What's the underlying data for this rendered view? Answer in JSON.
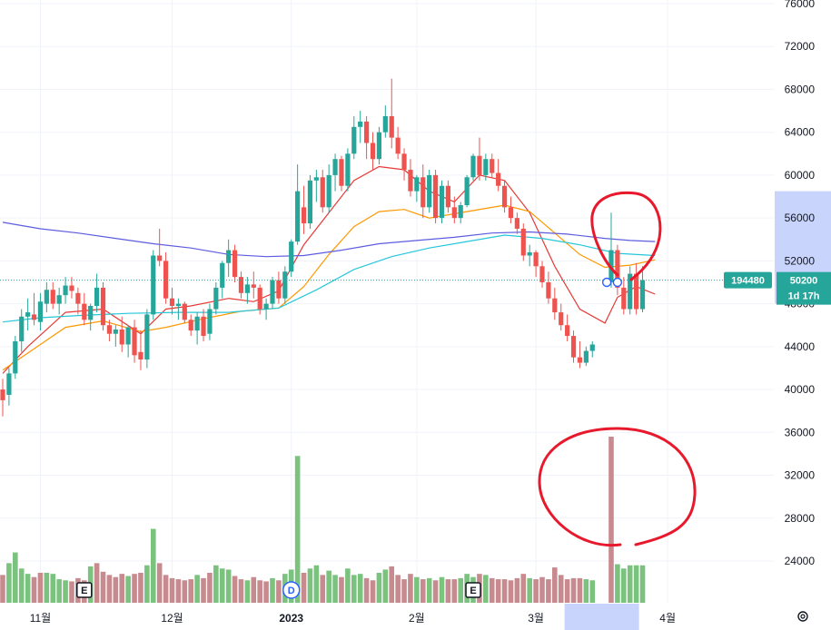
{
  "chart_data": {
    "type": "candlestick",
    "y_axis": {
      "ticks": [
        24000,
        28000,
        32000,
        36000,
        40000,
        44000,
        48000,
        52000,
        56000,
        60000,
        64000,
        68000,
        72000,
        76000
      ],
      "range": [
        21800,
        76500
      ]
    },
    "x_axis": {
      "labels": [
        {
          "text": "11월",
          "bar": 6,
          "bold": false
        },
        {
          "text": "12월",
          "bar": 27,
          "bold": false
        },
        {
          "text": "2023",
          "bar": 46,
          "bold": true
        },
        {
          "text": "2월",
          "bar": 66,
          "bold": false
        },
        {
          "text": "3월",
          "bar": 85,
          "bold": false
        },
        {
          "text": "4월",
          "bar": 106,
          "bold": false
        }
      ],
      "highlight_bar_range": [
        90,
        101
      ]
    },
    "price_line": 50200,
    "price_badge": {
      "volume_label": "194480",
      "price_label": "50200",
      "countdown_label": "1d 17h"
    },
    "candles": [
      [
        40000,
        41000,
        37500,
        39000
      ],
      [
        39500,
        42000,
        38500,
        41500
      ],
      [
        41500,
        45000,
        41000,
        44500
      ],
      [
        44500,
        47500,
        43500,
        46800
      ],
      [
        46800,
        48500,
        45500,
        47200
      ],
      [
        47000,
        49000,
        46000,
        46500
      ],
      [
        46300,
        49000,
        45500,
        48200
      ],
      [
        48000,
        50000,
        47200,
        49300
      ],
      [
        49300,
        50000,
        47500,
        48000
      ],
      [
        48000,
        49500,
        47000,
        48800
      ],
      [
        48800,
        50500,
        48000,
        49700
      ],
      [
        49700,
        50500,
        48500,
        49200
      ],
      [
        49000,
        49500,
        47000,
        48000
      ],
      [
        48000,
        49000,
        46000,
        46500
      ],
      [
        46500,
        48000,
        45500,
        47800
      ],
      [
        47800,
        50800,
        47200,
        49500
      ],
      [
        49500,
        50000,
        45500,
        46000
      ],
      [
        46000,
        46500,
        44500,
        45200
      ],
      [
        45200,
        46000,
        44000,
        45600
      ],
      [
        45600,
        46800,
        43500,
        44200
      ],
      [
        44200,
        46000,
        43000,
        45800
      ],
      [
        45800,
        46500,
        42500,
        43200
      ],
      [
        43500,
        45500,
        41800,
        42800
      ],
      [
        42800,
        47500,
        42000,
        47000
      ],
      [
        47000,
        53000,
        46500,
        52500
      ],
      [
        52500,
        55000,
        51500,
        52000
      ],
      [
        52000,
        52800,
        48000,
        48500
      ],
      [
        48500,
        49500,
        47000,
        47800
      ],
      [
        47800,
        48500,
        46500,
        48000
      ],
      [
        48000,
        48200,
        46200,
        46500
      ],
      [
        46500,
        47000,
        45000,
        45500
      ],
      [
        45500,
        47200,
        44200,
        46800
      ],
      [
        46800,
        47500,
        44500,
        45000
      ],
      [
        45200,
        48000,
        44600,
        47500
      ],
      [
        47500,
        50000,
        47000,
        49500
      ],
      [
        49500,
        52000,
        48500,
        51800
      ],
      [
        51800,
        54000,
        50500,
        53000
      ],
      [
        53000,
        53500,
        50000,
        50500
      ],
      [
        50500,
        51000,
        48500,
        49000
      ],
      [
        49000,
        50500,
        48000,
        49800
      ],
      [
        49800,
        51000,
        48500,
        49500
      ],
      [
        49500,
        49800,
        47000,
        47500
      ],
      [
        47500,
        48500,
        46500,
        48000
      ],
      [
        48000,
        50500,
        47500,
        50200
      ],
      [
        50200,
        51000,
        48000,
        48500
      ],
      [
        48500,
        51500,
        48000,
        51000
      ],
      [
        51000,
        54000,
        50500,
        53800
      ],
      [
        53800,
        61000,
        53500,
        58500
      ],
      [
        57000,
        59000,
        54500,
        55500
      ],
      [
        55500,
        60000,
        55000,
        59500
      ],
      [
        59500,
        60500,
        57500,
        59800
      ],
      [
        59800,
        60500,
        56500,
        57000
      ],
      [
        57000,
        61000,
        56500,
        60000
      ],
      [
        60000,
        62000,
        58500,
        61500
      ],
      [
        61500,
        61800,
        58500,
        59000
      ],
      [
        59000,
        62500,
        58500,
        62000
      ],
      [
        62000,
        65500,
        61500,
        64500
      ],
      [
        64500,
        66000,
        63000,
        65000
      ],
      [
        65000,
        65500,
        61500,
        63000
      ],
      [
        63000,
        64000,
        60500,
        61500
      ],
      [
        61500,
        64500,
        61000,
        64000
      ],
      [
        64000,
        66500,
        63500,
        65500
      ],
      [
        65500,
        69000,
        62500,
        63500
      ],
      [
        63500,
        64500,
        61500,
        62000
      ],
      [
        62000,
        62500,
        59500,
        60500
      ],
      [
        60500,
        61500,
        58000,
        58500
      ],
      [
        58500,
        60000,
        57500,
        59800
      ],
      [
        59800,
        61000,
        56000,
        57000
      ],
      [
        57000,
        60500,
        56500,
        60000
      ],
      [
        60000,
        60500,
        55500,
        56000
      ],
      [
        56000,
        59500,
        55500,
        59000
      ],
      [
        59000,
        59500,
        56500,
        57000
      ],
      [
        57000,
        58000,
        55500,
        56000
      ],
      [
        56000,
        57500,
        55500,
        57200
      ],
      [
        57200,
        60000,
        57000,
        59800
      ],
      [
        59800,
        62000,
        59500,
        61800
      ],
      [
        61800,
        63500,
        59500,
        60000
      ],
      [
        60000,
        62000,
        59500,
        61500
      ],
      [
        61500,
        62000,
        59800,
        60200
      ],
      [
        60200,
        61500,
        58500,
        59000
      ],
      [
        59000,
        59500,
        56500,
        57000
      ],
      [
        57000,
        58000,
        55500,
        56000
      ],
      [
        56000,
        56500,
        54500,
        55000
      ],
      [
        55000,
        55500,
        52000,
        52500
      ],
      [
        52500,
        53500,
        51500,
        52800
      ],
      [
        52800,
        53000,
        50500,
        51500
      ],
      [
        51500,
        52000,
        49500,
        50000
      ],
      [
        50000,
        51000,
        48000,
        48500
      ],
      [
        48500,
        49500,
        46500,
        47200
      ],
      [
        47200,
        48000,
        45500,
        46000
      ],
      [
        46000,
        47000,
        44500,
        45000
      ],
      [
        45000,
        45500,
        42500,
        43000
      ],
      [
        43000,
        44500,
        42000,
        42500
      ],
      [
        42500,
        44000,
        42200,
        43600
      ],
      [
        43600,
        44500,
        43000,
        44200
      ],
      null,
      null,
      [
        50000,
        56500,
        49500,
        53000
      ],
      [
        53000,
        53500,
        48800,
        49500
      ],
      [
        49500,
        50500,
        47000,
        47500
      ],
      [
        47500,
        51500,
        47000,
        50800
      ],
      [
        50800,
        51800,
        47000,
        47500
      ],
      [
        47500,
        51500,
        47200,
        50200
      ]
    ],
    "volumes": [
      [
        22700,
        false
      ],
      [
        23800,
        true
      ],
      [
        24800,
        true
      ],
      [
        23300,
        true
      ],
      [
        22800,
        true
      ],
      [
        22500,
        false
      ],
      [
        22900,
        false
      ],
      [
        22900,
        true
      ],
      [
        22800,
        true
      ],
      [
        22300,
        true
      ],
      [
        22200,
        true
      ],
      [
        22100,
        false
      ],
      [
        22400,
        false
      ],
      [
        22200,
        false
      ],
      [
        23500,
        true
      ],
      [
        23800,
        false
      ],
      [
        23000,
        false
      ],
      [
        22700,
        false
      ],
      [
        22500,
        false
      ],
      [
        22800,
        false
      ],
      [
        22600,
        true
      ],
      [
        22800,
        false
      ],
      [
        22900,
        false
      ],
      [
        23600,
        true
      ],
      [
        27000,
        true
      ],
      [
        23800,
        false
      ],
      [
        22700,
        false
      ],
      [
        22400,
        false
      ],
      [
        22300,
        false
      ],
      [
        22200,
        false
      ],
      [
        22300,
        false
      ],
      [
        22700,
        true
      ],
      [
        22400,
        false
      ],
      [
        22900,
        false
      ],
      [
        23600,
        true
      ],
      [
        23300,
        true
      ],
      [
        23200,
        true
      ],
      [
        22600,
        false
      ],
      [
        22300,
        false
      ],
      [
        22200,
        true
      ],
      [
        22500,
        false
      ],
      [
        22200,
        false
      ],
      [
        22100,
        false
      ],
      [
        22400,
        true
      ],
      [
        22200,
        false
      ],
      [
        22800,
        true
      ],
      [
        23200,
        true
      ],
      [
        33800,
        true
      ],
      [
        22900,
        false
      ],
      [
        23300,
        true
      ],
      [
        23600,
        true
      ],
      [
        22700,
        false
      ],
      [
        23100,
        true
      ],
      [
        22700,
        true
      ],
      [
        22500,
        false
      ],
      [
        23300,
        true
      ],
      [
        22700,
        true
      ],
      [
        22800,
        true
      ],
      [
        22400,
        false
      ],
      [
        22200,
        false
      ],
      [
        22900,
        true
      ],
      [
        23200,
        true
      ],
      [
        23500,
        false
      ],
      [
        22700,
        false
      ],
      [
        22300,
        false
      ],
      [
        22800,
        false
      ],
      [
        22500,
        true
      ],
      [
        22300,
        false
      ],
      [
        22400,
        true
      ],
      [
        22200,
        false
      ],
      [
        22500,
        true
      ],
      [
        22300,
        false
      ],
      [
        22300,
        false
      ],
      [
        22400,
        true
      ],
      [
        22800,
        true
      ],
      [
        22500,
        true
      ],
      [
        22800,
        false
      ],
      [
        22700,
        true
      ],
      [
        22400,
        false
      ],
      [
        22300,
        false
      ],
      [
        22300,
        false
      ],
      [
        22200,
        false
      ],
      [
        22400,
        false
      ],
      [
        22800,
        false
      ],
      [
        22400,
        true
      ],
      [
        22300,
        false
      ],
      [
        22500,
        false
      ],
      [
        22300,
        false
      ],
      [
        23400,
        false
      ],
      [
        22700,
        false
      ],
      [
        22300,
        false
      ],
      [
        22400,
        false
      ],
      [
        22400,
        false
      ],
      [
        22300,
        true
      ],
      [
        22200,
        true
      ],
      null,
      null,
      [
        35600,
        false
      ],
      [
        23700,
        true
      ],
      [
        23300,
        true
      ],
      [
        23600,
        true
      ],
      [
        23600,
        true
      ],
      [
        23600,
        true
      ]
    ],
    "moving_averages": [
      {
        "color": "#e53935",
        "points": [
          [
            0,
            41500
          ],
          [
            4,
            44000
          ],
          [
            10,
            47200
          ],
          [
            16,
            47500
          ],
          [
            22,
            45200
          ],
          [
            26,
            47500
          ],
          [
            30,
            47800
          ],
          [
            36,
            48500
          ],
          [
            40,
            48200
          ],
          [
            44,
            49200
          ],
          [
            48,
            53500
          ],
          [
            52,
            56500
          ],
          [
            56,
            59500
          ],
          [
            60,
            60800
          ],
          [
            64,
            60500
          ],
          [
            68,
            58500
          ],
          [
            72,
            57500
          ],
          [
            76,
            60000
          ],
          [
            80,
            59500
          ],
          [
            84,
            56500
          ],
          [
            88,
            51500
          ],
          [
            92,
            47500
          ],
          [
            96,
            46200
          ],
          [
            98,
            48600
          ],
          [
            101,
            49600
          ],
          [
            104,
            48900
          ]
        ]
      },
      {
        "color": "#ff9800",
        "points": [
          [
            0,
            41800
          ],
          [
            5,
            43800
          ],
          [
            10,
            45800
          ],
          [
            16,
            46400
          ],
          [
            22,
            45400
          ],
          [
            26,
            45800
          ],
          [
            32,
            46600
          ],
          [
            38,
            47300
          ],
          [
            44,
            47600
          ],
          [
            48,
            49600
          ],
          [
            52,
            52600
          ],
          [
            56,
            55200
          ],
          [
            60,
            56600
          ],
          [
            64,
            56800
          ],
          [
            68,
            56000
          ],
          [
            74,
            56600
          ],
          [
            80,
            57200
          ],
          [
            84,
            56600
          ],
          [
            88,
            54600
          ],
          [
            92,
            52600
          ],
          [
            96,
            51400
          ],
          [
            100,
            51600
          ],
          [
            104,
            52100
          ]
        ]
      },
      {
        "color": "#26c6da",
        "points": [
          [
            0,
            46300
          ],
          [
            6,
            46700
          ],
          [
            12,
            46900
          ],
          [
            20,
            47100
          ],
          [
            28,
            47200
          ],
          [
            36,
            47200
          ],
          [
            44,
            47600
          ],
          [
            50,
            49300
          ],
          [
            56,
            51200
          ],
          [
            62,
            52400
          ],
          [
            68,
            53200
          ],
          [
            74,
            53800
          ],
          [
            80,
            54400
          ],
          [
            86,
            54100
          ],
          [
            92,
            53500
          ],
          [
            98,
            52700
          ],
          [
            104,
            52500
          ]
        ]
      },
      {
        "color": "#5c5ce0",
        "points": [
          [
            0,
            55600
          ],
          [
            6,
            55000
          ],
          [
            12,
            54600
          ],
          [
            18,
            54100
          ],
          [
            24,
            53600
          ],
          [
            30,
            53200
          ],
          [
            36,
            52600
          ],
          [
            42,
            52400
          ],
          [
            48,
            52500
          ],
          [
            54,
            53000
          ],
          [
            60,
            53600
          ],
          [
            66,
            53900
          ],
          [
            72,
            54200
          ],
          [
            78,
            54600
          ],
          [
            84,
            54700
          ],
          [
            90,
            54500
          ],
          [
            96,
            54100
          ],
          [
            100,
            53900
          ],
          [
            104,
            53800
          ]
        ]
      }
    ],
    "volume_markers": [
      {
        "label": "E",
        "bar": 13,
        "shape": "square"
      },
      {
        "label": "D",
        "bar": 46,
        "shape": "circle"
      },
      {
        "label": "E",
        "bar": 75,
        "shape": "square"
      }
    ],
    "price_markers": [
      {
        "bar": 96.3,
        "value": 50000
      },
      {
        "bar": 98,
        "value": 50000
      }
    ],
    "colors": {
      "up": "#26a69a",
      "down": "#ef5350",
      "vol_up": "#7bc27f",
      "vol_down": "#c78b8f",
      "annotation": "#e8192c",
      "axis_highlight": "#c8d4fb",
      "price_badge": "#26a69a",
      "marker": "#2962ff"
    }
  }
}
